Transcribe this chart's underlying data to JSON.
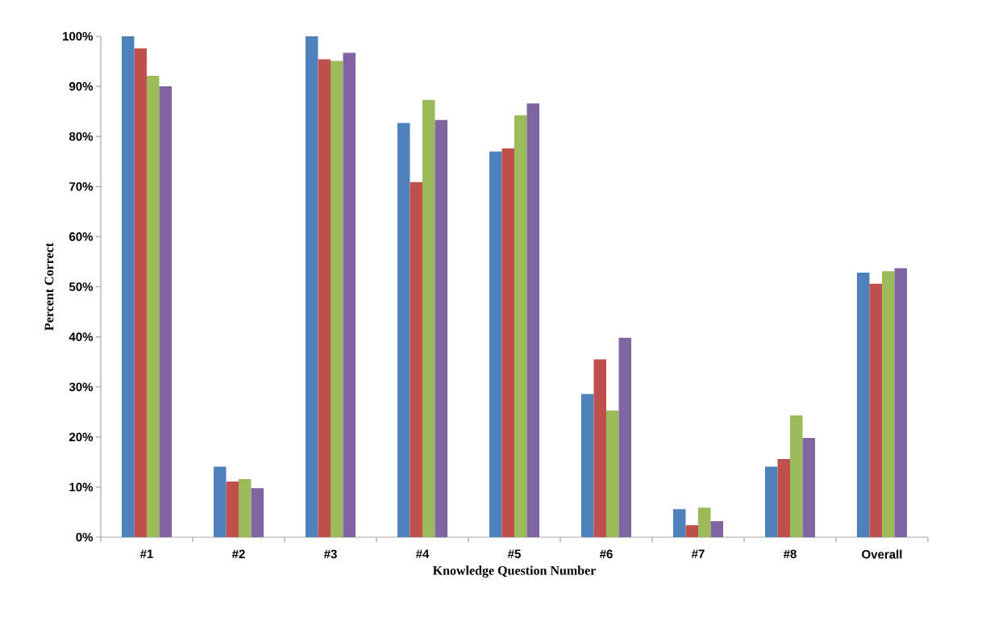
{
  "chart_data": {
    "type": "bar",
    "xlabel": "Knowledge Question Number",
    "ylabel": "Percent Correct",
    "categories": [
      "#1",
      "#2",
      "#3",
      "#4",
      "#5",
      "#6",
      "#7",
      "#8",
      "Overall"
    ],
    "series": [
      {
        "color": "#4f81bd",
        "values": [
          100,
          14.1,
          100,
          82.7,
          77.0,
          28.6,
          5.6,
          14.1,
          52.8
        ]
      },
      {
        "color": "#c0504d",
        "values": [
          97.6,
          11.1,
          95.4,
          70.9,
          77.6,
          35.5,
          2.4,
          15.6,
          50.6
        ]
      },
      {
        "color": "#9bbb59",
        "values": [
          92.1,
          11.6,
          95.1,
          87.3,
          84.2,
          25.3,
          5.9,
          24.3,
          53.1
        ]
      },
      {
        "color": "#8064a2",
        "values": [
          90.0,
          9.8,
          96.7,
          83.3,
          86.6,
          39.8,
          3.2,
          19.8,
          53.7
        ]
      }
    ],
    "ylim": [
      0,
      100
    ],
    "yticks": [
      {
        "value": 0,
        "label": "0%"
      },
      {
        "value": 10,
        "label": "10%"
      },
      {
        "value": 20,
        "label": "20%"
      },
      {
        "value": 30,
        "label": "30%"
      },
      {
        "value": 40,
        "label": "40%"
      },
      {
        "value": 50,
        "label": "50%"
      },
      {
        "value": 60,
        "label": "60%"
      },
      {
        "value": 70,
        "label": "70%"
      },
      {
        "value": 80,
        "label": "80%"
      },
      {
        "value": 90,
        "label": "90%"
      },
      {
        "value": 100,
        "label": "100%"
      }
    ],
    "grid": false,
    "legend": false
  }
}
